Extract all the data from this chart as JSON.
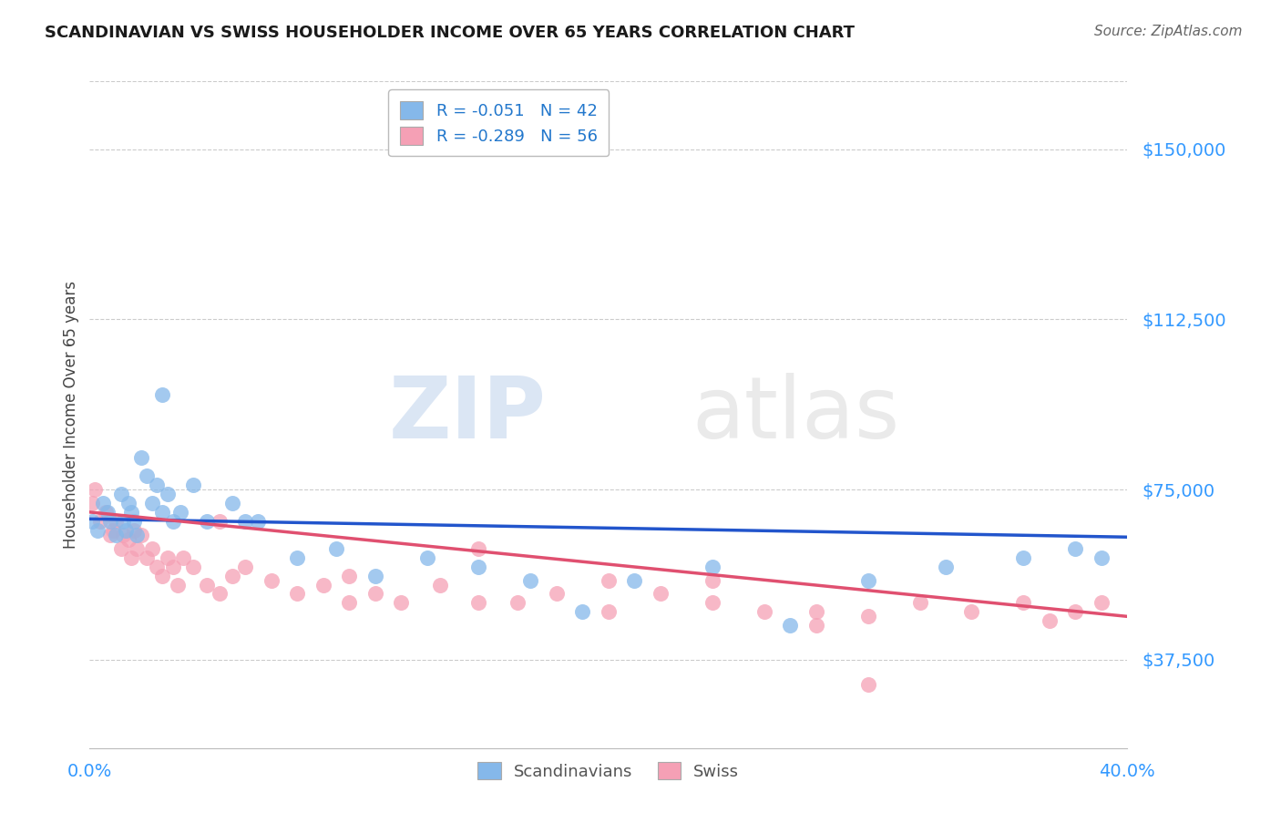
{
  "title": "SCANDINAVIAN VS SWISS HOUSEHOLDER INCOME OVER 65 YEARS CORRELATION CHART",
  "source": "Source: ZipAtlas.com",
  "ylabel": "Householder Income Over 65 years",
  "yticks": [
    37500,
    75000,
    112500,
    150000
  ],
  "ytick_labels": [
    "$37,500",
    "$75,000",
    "$112,500",
    "$150,000"
  ],
  "xlim": [
    0.0,
    0.4
  ],
  "ylim": [
    18000,
    165000
  ],
  "legend1_label": "R = -0.051   N = 42",
  "legend2_label": "R = -0.289   N = 56",
  "legend_bottom_label1": "Scandinavians",
  "legend_bottom_label2": "Swiss",
  "background_color": "#ffffff",
  "grid_color": "#cccccc",
  "scatter_blue": "#85b8ea",
  "scatter_pink": "#f5a0b5",
  "line_blue": "#2255cc",
  "line_pink": "#e05070",
  "scand_x": [
    0.001,
    0.003,
    0.005,
    0.007,
    0.008,
    0.01,
    0.012,
    0.013,
    0.014,
    0.015,
    0.016,
    0.017,
    0.018,
    0.02,
    0.022,
    0.024,
    0.026,
    0.028,
    0.03,
    0.032,
    0.035,
    0.04,
    0.045,
    0.055,
    0.065,
    0.08,
    0.095,
    0.11,
    0.13,
    0.15,
    0.17,
    0.19,
    0.21,
    0.24,
    0.27,
    0.3,
    0.33,
    0.36,
    0.38,
    0.39,
    0.028,
    0.06
  ],
  "scand_y": [
    68000,
    66000,
    72000,
    70000,
    68000,
    65000,
    74000,
    68000,
    66000,
    72000,
    70000,
    68000,
    65000,
    82000,
    78000,
    72000,
    76000,
    70000,
    74000,
    68000,
    70000,
    76000,
    68000,
    72000,
    68000,
    60000,
    62000,
    56000,
    60000,
    58000,
    55000,
    48000,
    55000,
    58000,
    45000,
    55000,
    58000,
    60000,
    62000,
    60000,
    96000,
    68000
  ],
  "swiss_x": [
    0.001,
    0.002,
    0.004,
    0.006,
    0.008,
    0.009,
    0.01,
    0.012,
    0.013,
    0.015,
    0.016,
    0.017,
    0.018,
    0.02,
    0.022,
    0.024,
    0.026,
    0.028,
    0.03,
    0.032,
    0.034,
    0.036,
    0.04,
    0.045,
    0.05,
    0.055,
    0.06,
    0.07,
    0.08,
    0.09,
    0.1,
    0.11,
    0.12,
    0.135,
    0.15,
    0.165,
    0.18,
    0.2,
    0.22,
    0.24,
    0.26,
    0.28,
    0.3,
    0.32,
    0.34,
    0.36,
    0.37,
    0.38,
    0.39,
    0.28,
    0.15,
    0.2,
    0.24,
    0.05,
    0.1,
    0.3
  ],
  "swiss_y": [
    72000,
    75000,
    68000,
    70000,
    65000,
    66000,
    68000,
    62000,
    65000,
    64000,
    60000,
    66000,
    62000,
    65000,
    60000,
    62000,
    58000,
    56000,
    60000,
    58000,
    54000,
    60000,
    58000,
    54000,
    52000,
    56000,
    58000,
    55000,
    52000,
    54000,
    50000,
    52000,
    50000,
    54000,
    50000,
    50000,
    52000,
    48000,
    52000,
    50000,
    48000,
    48000,
    47000,
    50000,
    48000,
    50000,
    46000,
    48000,
    50000,
    45000,
    62000,
    55000,
    55000,
    68000,
    56000,
    32000
  ]
}
